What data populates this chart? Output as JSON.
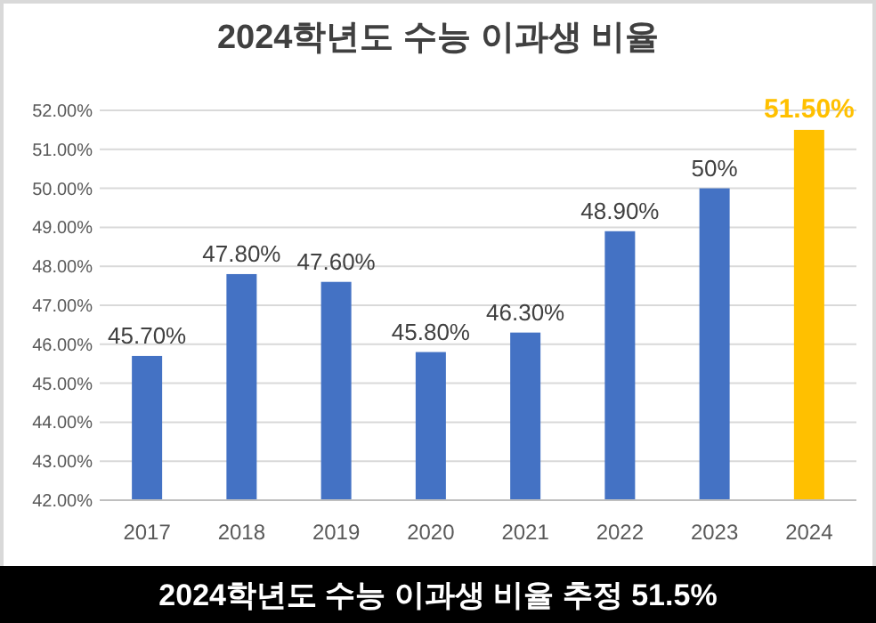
{
  "chart_data": {
    "type": "bar",
    "title": "2024학년도 수능 이과생 비율",
    "categories": [
      "2017",
      "2018",
      "2019",
      "2020",
      "2021",
      "2022",
      "2023",
      "2024"
    ],
    "values": [
      45.7,
      47.8,
      47.6,
      45.8,
      46.3,
      48.9,
      50,
      51.5
    ],
    "colors": [
      "#4472c4",
      "#4472c4",
      "#4472c4",
      "#4472c4",
      "#4472c4",
      "#4472c4",
      "#4472c4",
      "#ffc000"
    ],
    "value_labels": [
      "45.70%",
      "47.80%",
      "47.60%",
      "45.80%",
      "46.30%",
      "48.90%",
      "50%",
      "51.50%"
    ],
    "ylim": [
      42,
      52
    ],
    "yticks": [
      {
        "value": 42,
        "label": "42.00%"
      },
      {
        "value": 43,
        "label": "43.00%"
      },
      {
        "value": 44,
        "label": "44.00%"
      },
      {
        "value": 45,
        "label": "45.00%"
      },
      {
        "value": 46,
        "label": "46.00%"
      },
      {
        "value": 47,
        "label": "47.00%"
      },
      {
        "value": 48,
        "label": "48.00%"
      },
      {
        "value": 49,
        "label": "49.00%"
      },
      {
        "value": 50,
        "label": "50.00%"
      },
      {
        "value": 51,
        "label": "51.00%"
      },
      {
        "value": 52,
        "label": "52.00%"
      }
    ],
    "grid": "y",
    "annotations": [
      "2024학년도 수능 이과생 비율 추정 51.5%"
    ]
  }
}
